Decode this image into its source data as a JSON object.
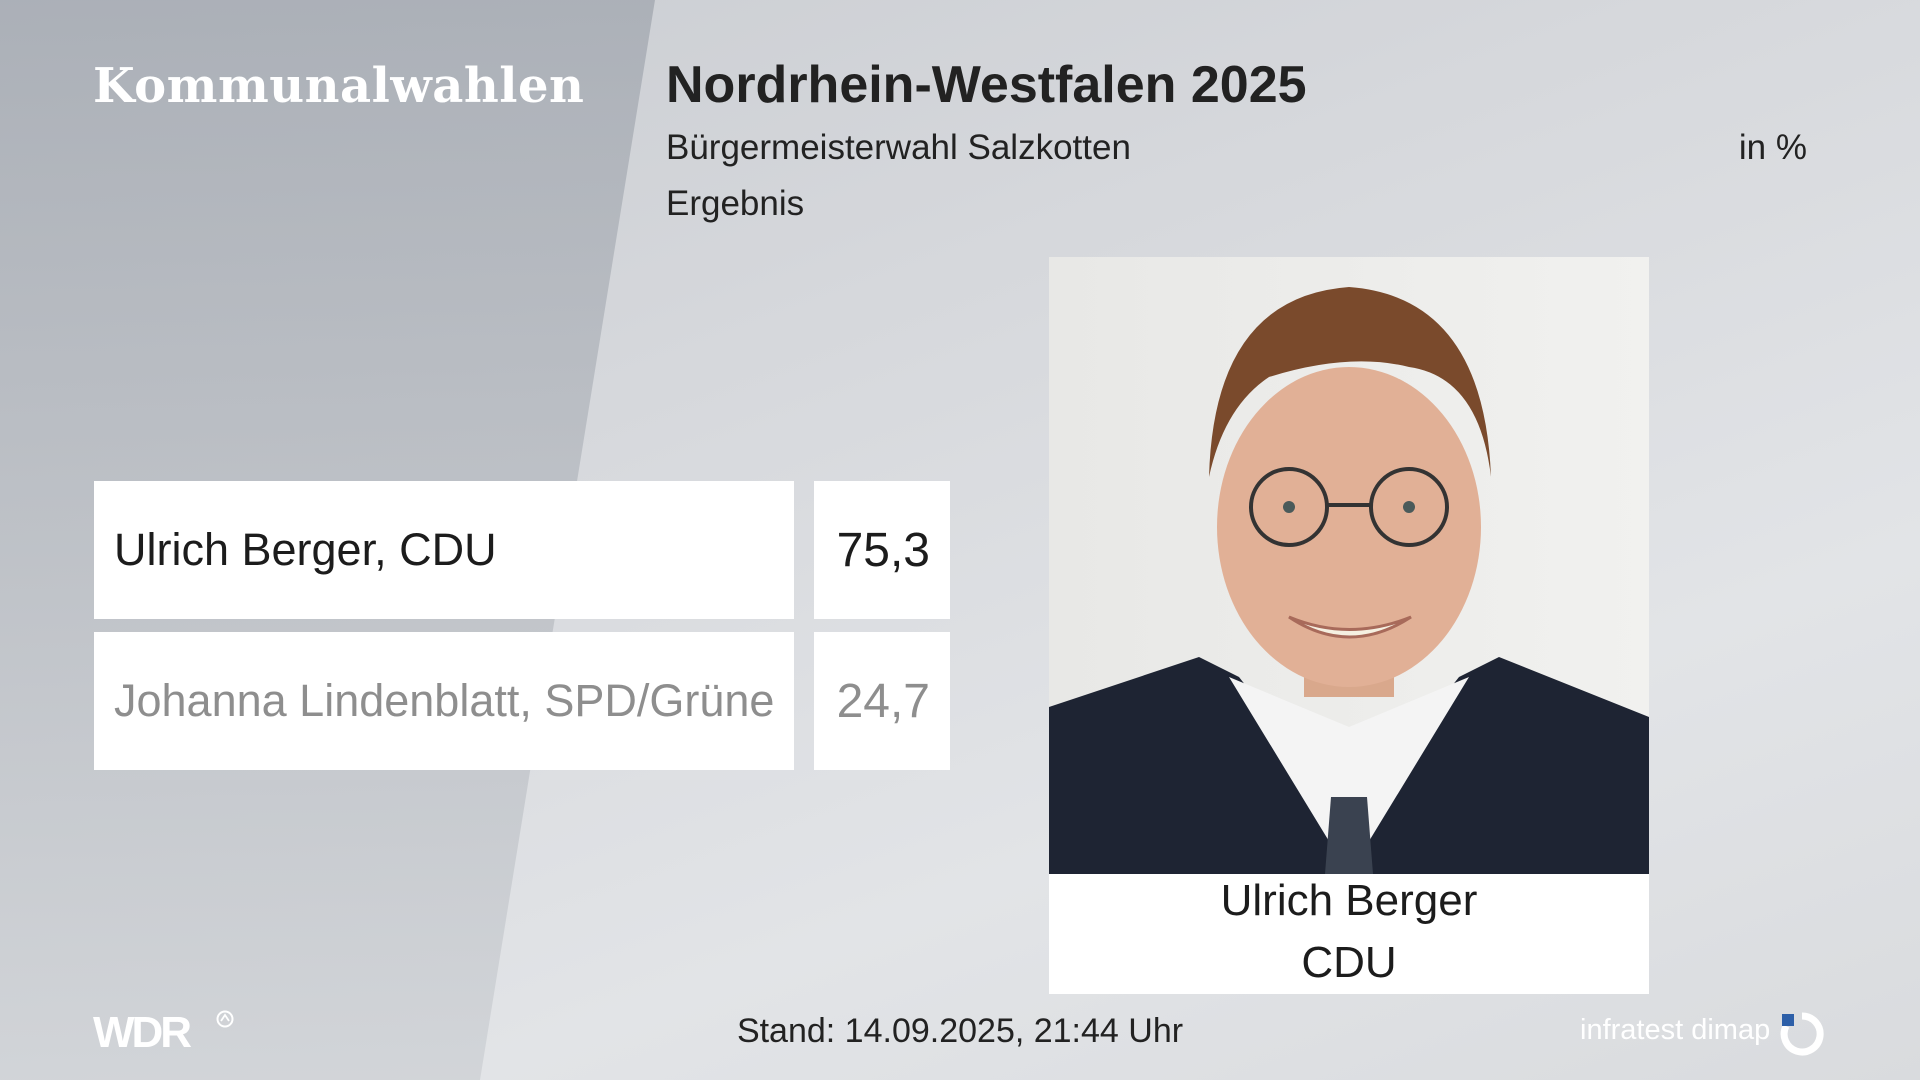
{
  "header": {
    "brand": "Kommunalwahlen",
    "title": "Nordrhein-Westfalen 2025",
    "subtitle": "Bürgermeisterwahl Salzkotten",
    "result_label": "Ergebnis",
    "unit": "in %"
  },
  "chart_data": {
    "type": "table",
    "title": "Nordrhein-Westfalen 2025",
    "subtitle": "Bürgermeisterwahl Salzkotten",
    "unit": "in %",
    "categories": [
      "Ulrich Berger, CDU",
      "Johanna Lindenblatt, SPD/Grüne"
    ],
    "values": [
      75.3,
      24.7
    ],
    "value_labels": [
      "75,3",
      "24,7"
    ],
    "winner_index": 0
  },
  "winner_card": {
    "name": "Ulrich Berger",
    "party": "CDU"
  },
  "footer": {
    "broadcaster": "WDR",
    "timestamp": "Stand: 14.09.2025, 21:44 Uhr",
    "source": "infratest dimap"
  },
  "colors": {
    "winner_text": "#1c1c1c",
    "loser_text": "#8e8e8e",
    "box_bg": "#ffffff"
  },
  "icons": {
    "broadcaster_mark": "ard-circle-icon",
    "source_mark": "infratest-dimap-logo-icon",
    "candidate_photo": "candidate-portrait"
  }
}
